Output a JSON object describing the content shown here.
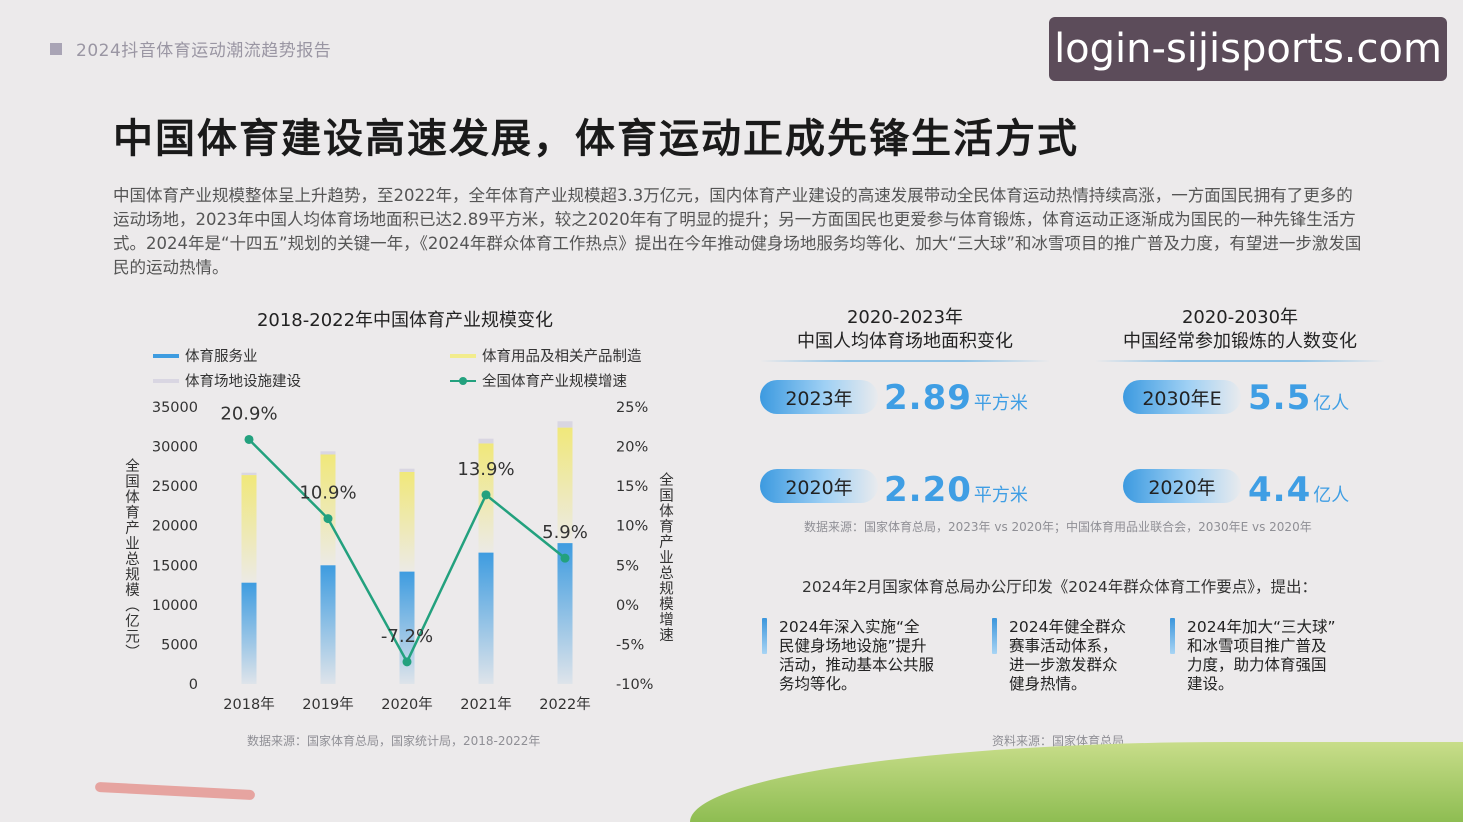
{
  "header": {
    "report_title": "2024抖音体育运动潮流趋势报告",
    "watermark": "login-sijisports.com"
  },
  "main_title": "中国体育建设高速发展，体育运动正成先锋生活方式",
  "intro": "中国体育产业规模整体呈上升趋势，至2022年，全年体育产业规模超3.3万亿元，国内体育产业建设的高速发展带动全民体育运动热情持续高涨，一方面国民拥有了更多的运动场地，2023年中国人均体育场地面积已达2.89平方米，较之2020年有了明显的提升；另一方面国民也更爱参与体育锻炼，体育运动正逐渐成为国民的一种先锋生活方式。2024年是“十四五”规划的关键一年，《2024年群众体育工作热点》提出在今年推动健身场地服务均等化、加大“三大球”和冰雪项目的推广普及力度，有望进一步激发国民的运动热情。",
  "chart_data": {
    "type": "bar",
    "title": "2018-2022年中国体育产业规模变化",
    "categories": [
      "2018年",
      "2019年",
      "2020年",
      "2021年",
      "2022年"
    ],
    "ylabel": "全国体育产业总规模（亿元）",
    "y2label": "全国体育产业总规模增速",
    "ylim": [
      0,
      35000
    ],
    "y2lim": [
      -10,
      25
    ],
    "yticks": [
      "0",
      "5000",
      "10000",
      "15000",
      "20000",
      "25000",
      "30000",
      "35000"
    ],
    "y2ticks": [
      "-10%",
      "-5%",
      "0%",
      "5%",
      "10%",
      "15%",
      "20%",
      "25%"
    ],
    "series": [
      {
        "name": "体育服务业",
        "kind": "bar",
        "color": "#3e9ce0",
        "values": [
          12800,
          15000,
          14200,
          16600,
          17800
        ]
      },
      {
        "name": "体育用品及相关产品制造",
        "kind": "bar",
        "color": "#f2ec8c",
        "values": [
          13600,
          14000,
          12600,
          13800,
          14600
        ]
      },
      {
        "name": "体育场地设施建设",
        "kind": "bar",
        "color": "#d9d6e2",
        "values": [
          300,
          400,
          400,
          600,
          800
        ]
      },
      {
        "name": "全国体育产业规模增速",
        "kind": "line",
        "color": "#23a17e",
        "values": [
          20.9,
          10.9,
          -7.2,
          13.9,
          5.9
        ],
        "labels": [
          "20.9%",
          "10.9%",
          "-7.2%",
          "13.9%",
          "5.9%"
        ]
      }
    ],
    "legend": "top",
    "source": "数据来源：国家体育总局，国家统计局，2018-2022年"
  },
  "stats": {
    "area": {
      "title_line1": "2020-2023年",
      "title_line2": "中国人均体育场地面积变化",
      "rows": [
        {
          "year": "2023年",
          "value": "2.89",
          "unit": "平方米"
        },
        {
          "year": "2020年",
          "value": "2.20",
          "unit": "平方米"
        }
      ]
    },
    "people": {
      "title_line1": "2020-2030年",
      "title_line2": "中国经常参加锻炼的人数变化",
      "rows": [
        {
          "year": "2030年E",
          "value": "5.5",
          "unit": "亿人"
        },
        {
          "year": "2020年",
          "value": "4.4",
          "unit": "亿人"
        }
      ]
    },
    "source": "数据来源：国家体育总局，2023年 vs 2020年；中国体育用品业联合会，2030年E vs 2020年"
  },
  "policy": {
    "notice": "2024年2月国家体育总局办公厅印发《2024年群众体育工作要点》，提出：",
    "points": [
      {
        "l1": "2024年深入实施“全",
        "l2": "民健身场地设施”提升",
        "l3": "活动，推动基本公共服",
        "l4": "务均等化。"
      },
      {
        "l1": "2024年健全群众",
        "l2": "赛事活动体系，",
        "l3": "进一步激发群众",
        "l4": "健身热情。"
      },
      {
        "l1": "2024年加大“三大球”",
        "l2": "和冰雪项目推广普及",
        "l3": "力度，助力体育强国",
        "l4": "建设。"
      }
    ],
    "source": "资料来源：国家体育总局"
  }
}
